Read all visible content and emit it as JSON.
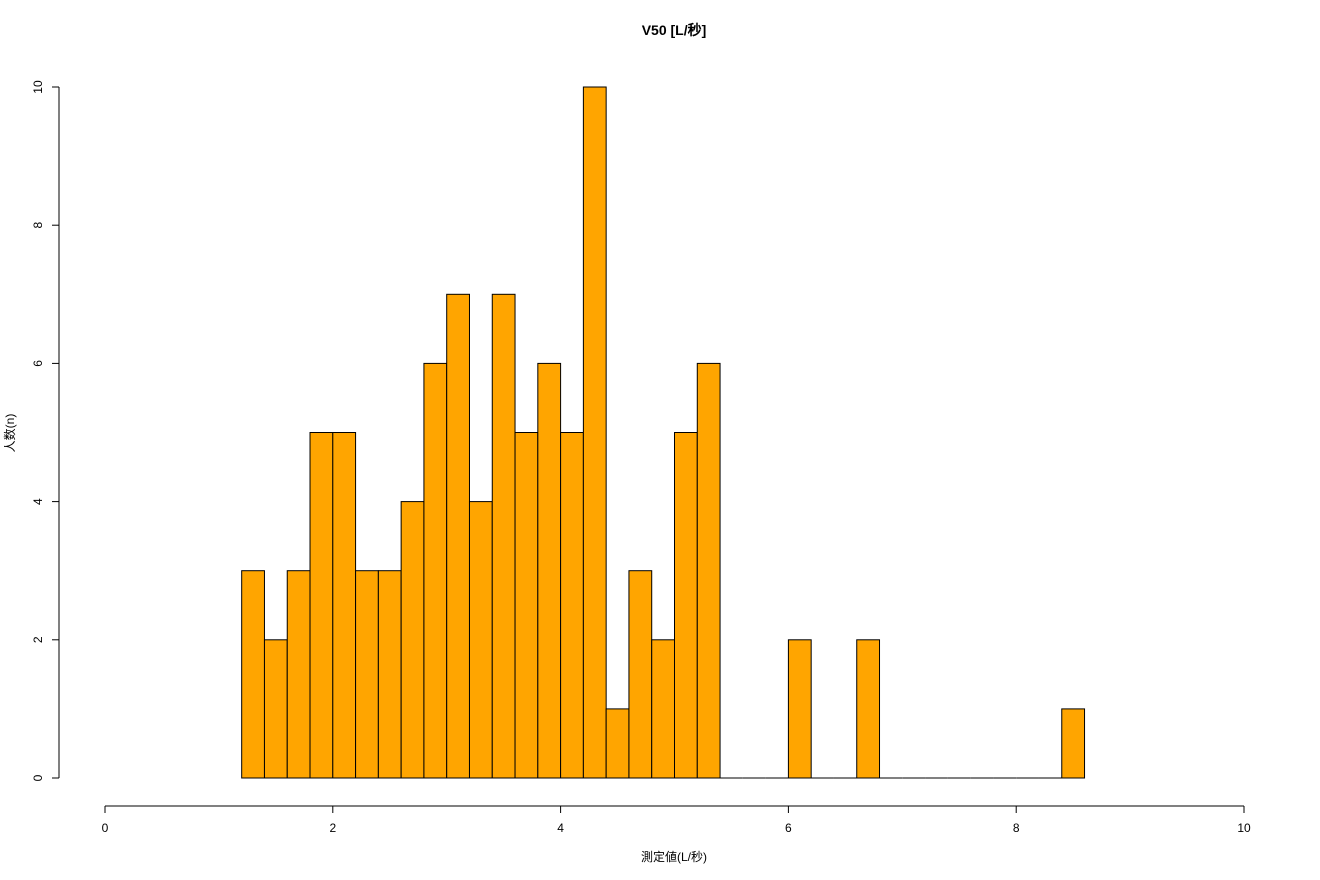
{
  "chart_data": {
    "type": "bar",
    "title": "V50 [L/秒]",
    "xlabel": "測定値(L/秒)",
    "ylabel": "人数(n)",
    "xlim": [
      0,
      10
    ],
    "ylim": [
      0,
      10
    ],
    "x_ticks": [
      "0",
      "2",
      "4",
      "6",
      "8",
      "10"
    ],
    "y_ticks": [
      "0",
      "2",
      "4",
      "6",
      "8",
      "10"
    ],
    "bin_width": 0.2,
    "bin_start": 1.2,
    "bar_color": "#FFA500",
    "grid": false,
    "values": [
      3,
      2,
      3,
      5,
      5,
      3,
      3,
      4,
      6,
      7,
      4,
      7,
      5,
      6,
      5,
      10,
      1,
      3,
      2,
      5,
      6,
      0,
      0,
      0,
      2,
      0,
      0,
      2,
      0,
      0,
      0,
      0,
      0,
      0,
      0,
      0,
      1
    ]
  }
}
